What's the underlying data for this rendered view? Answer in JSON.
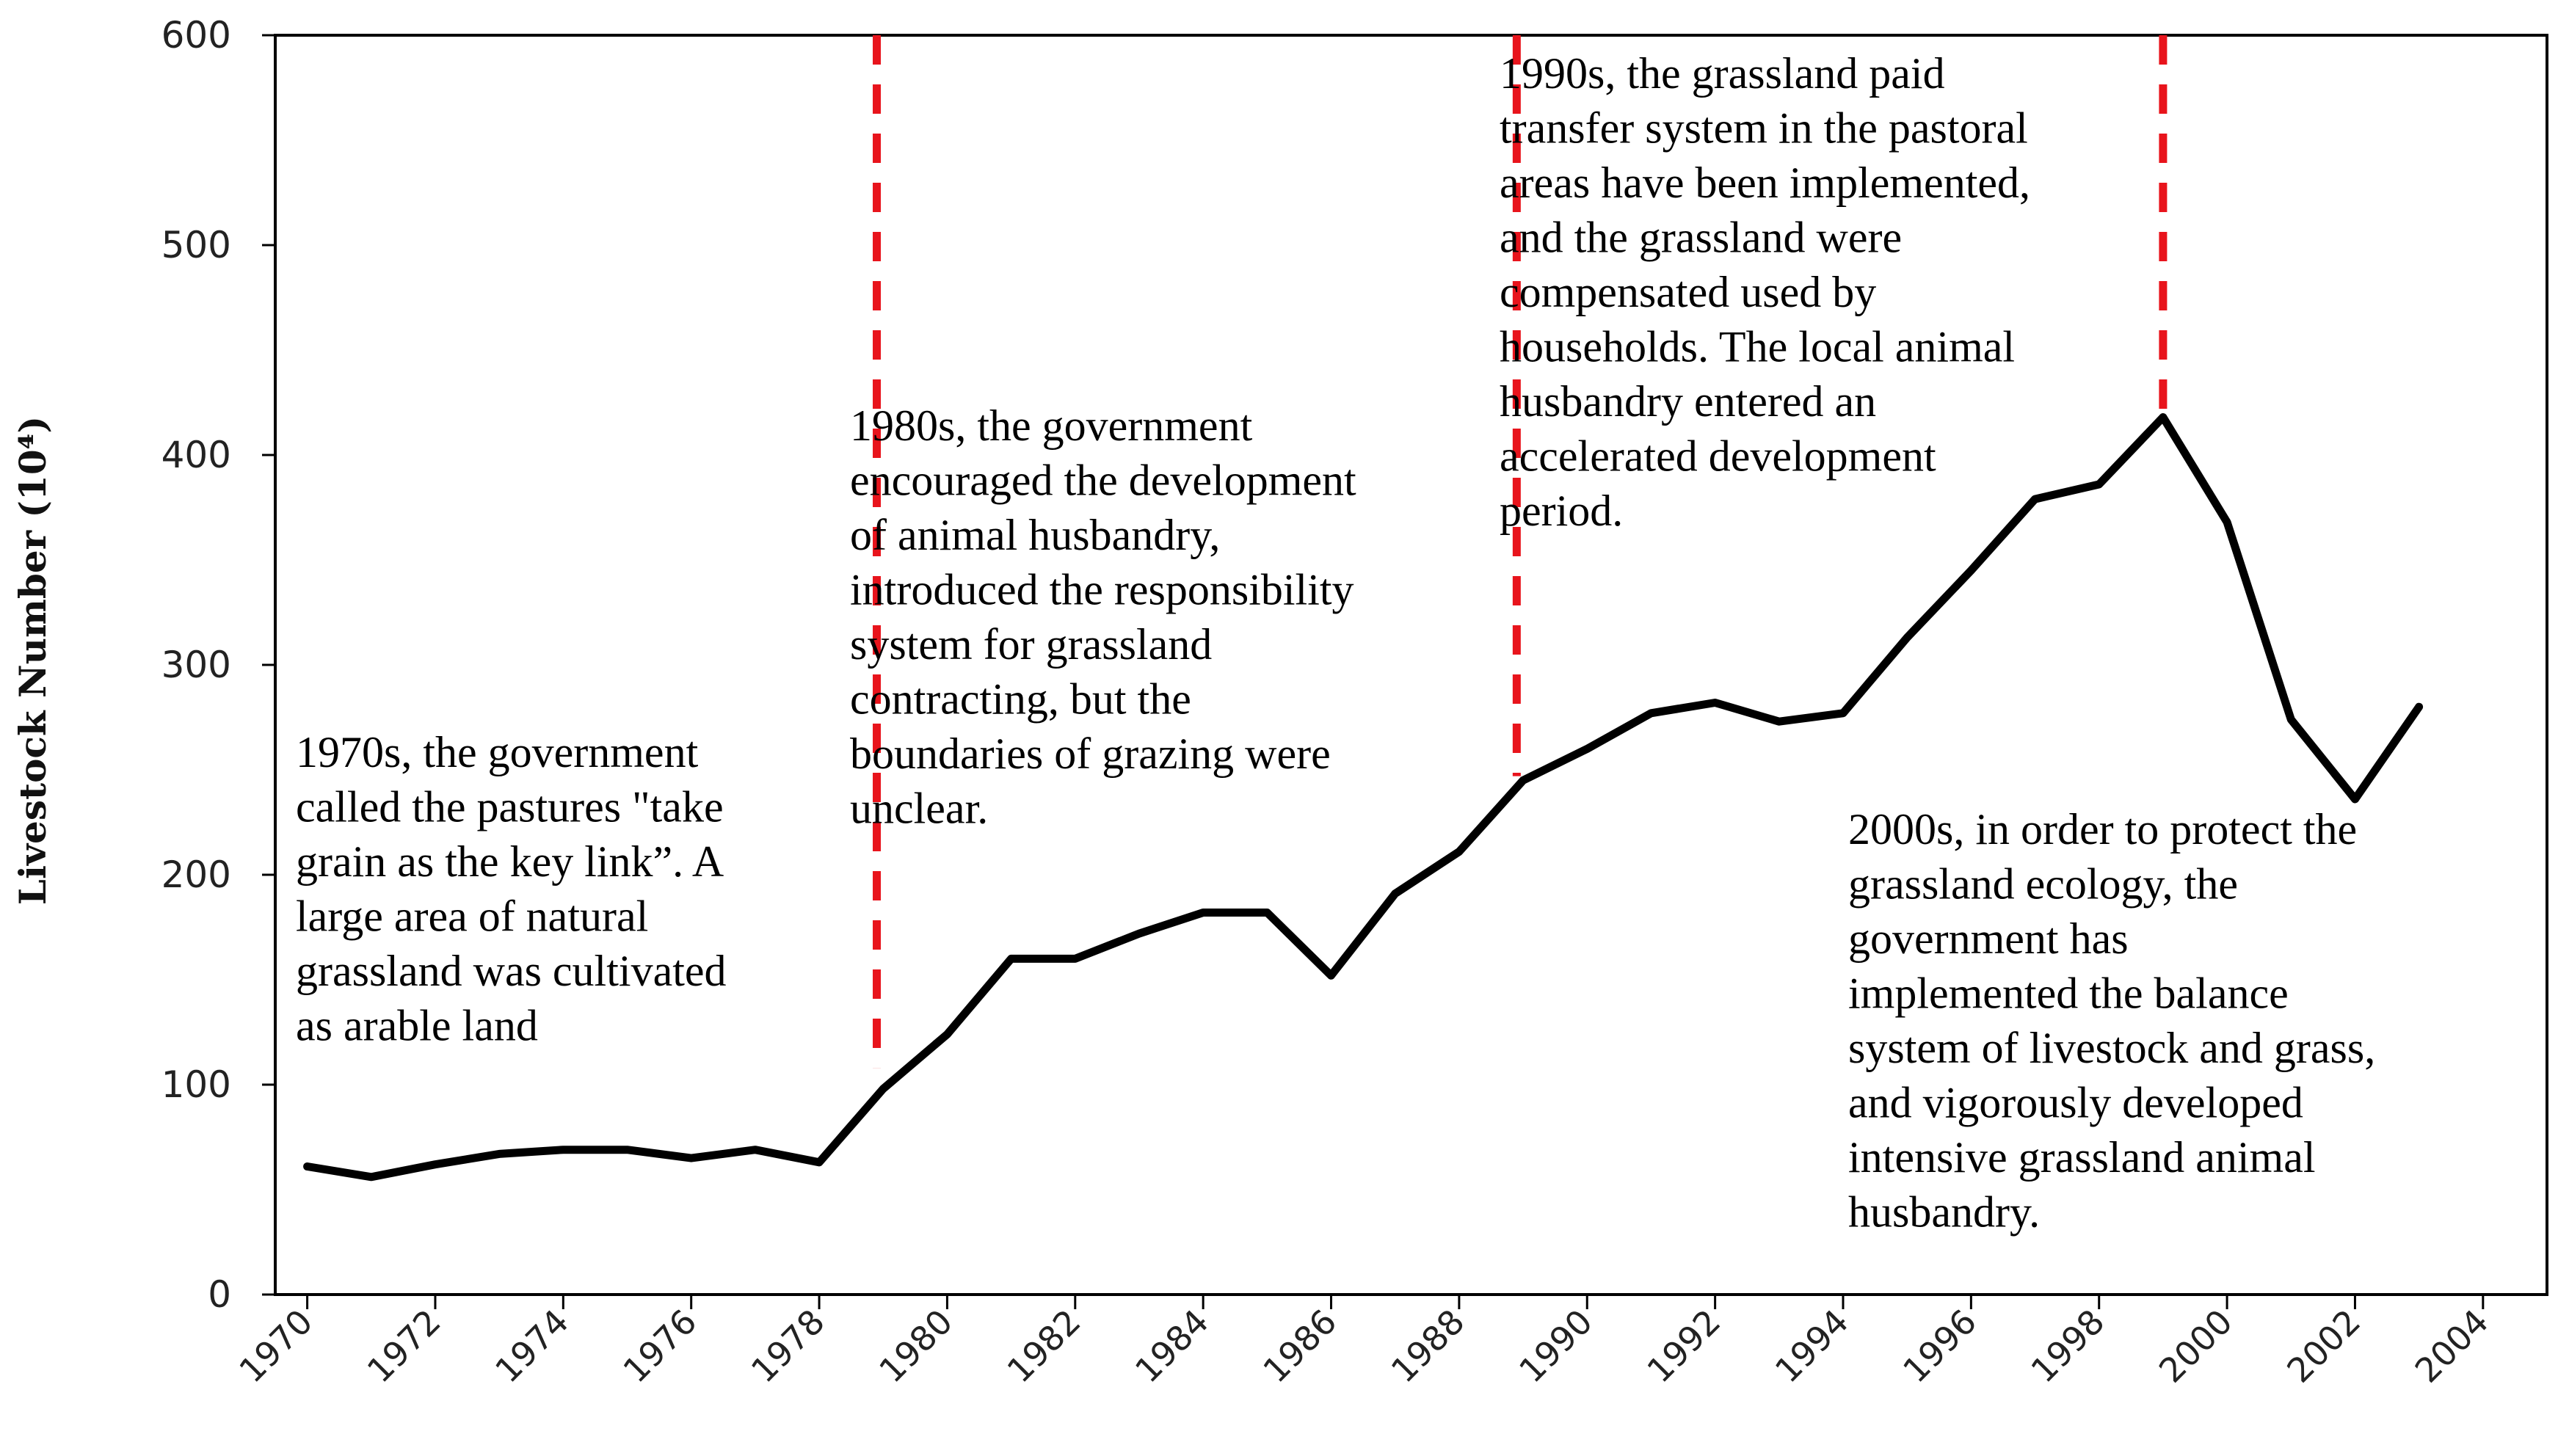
{
  "chart_data": {
    "type": "line",
    "title": "",
    "xlabel": "",
    "ylabel": "Livestock Number (10⁴)",
    "xlim": [
      1969.5,
      2005
    ],
    "ylim": [
      0,
      600
    ],
    "y_ticks": [
      0,
      100,
      200,
      300,
      400,
      500,
      600
    ],
    "x_ticks": [
      1970,
      1972,
      1974,
      1976,
      1978,
      1980,
      1982,
      1984,
      1986,
      1988,
      1990,
      1992,
      1994,
      1996,
      1998,
      2000,
      2002,
      2004
    ],
    "grid": false,
    "series": [
      {
        "name": "Livestock Number",
        "color": "#000000",
        "x": [
          1970,
          1971,
          1972,
          1973,
          1974,
          1975,
          1976,
          1977,
          1978,
          1979,
          1980,
          1981,
          1982,
          1983,
          1984,
          1985,
          1986,
          1987,
          1988,
          1989,
          1990,
          1991,
          1992,
          1993,
          1994,
          1995,
          1996,
          1997,
          1998,
          1999,
          2000,
          2001,
          2002,
          2003
        ],
        "values": [
          61,
          56,
          62,
          67,
          69,
          69,
          65,
          69,
          63,
          98,
          124,
          160,
          160,
          172,
          182,
          182,
          152,
          191,
          211,
          245,
          260,
          277,
          282,
          273,
          277,
          313,
          345,
          379,
          386,
          418,
          368,
          274,
          236,
          280
        ]
      }
    ],
    "dividers": {
      "color": "#e8141c",
      "items": [
        {
          "x": 1978.9,
          "y_from": 108,
          "y_to": 600
        },
        {
          "x": 1988.9,
          "y_from": 247,
          "y_to": 600
        },
        {
          "x": 1999.0,
          "y_from": 418,
          "y_to": 600
        }
      ]
    },
    "annotations": [
      {
        "id": "1970s",
        "lines": [
          "1970s, the government",
          "called the pastures \"take",
          "grain as the key link”. A",
          "large area of natural",
          "grassland was cultivated",
          "as arable land"
        ]
      },
      {
        "id": "1980s",
        "lines": [
          "1980s, the government",
          "encouraged the development",
          "of animal husbandry,",
          "introduced the responsibility",
          "system for grassland",
          "contracting, but the",
          "boundaries of grazing were",
          "unclear."
        ]
      },
      {
        "id": "1990s",
        "lines": [
          "1990s, the grassland paid",
          "transfer system in the pastoral",
          "areas have been implemented,",
          "and the grassland were",
          "compensated used by",
          "households. The local animal",
          "husbandry entered an",
          "accelerated development",
          "period."
        ]
      },
      {
        "id": "2000s",
        "lines": [
          "2000s, in order to protect the",
          "grassland ecology, the",
          "government has",
          "implemented the balance",
          "system of livestock and grass,",
          "and vigorously developed",
          "intensive grassland animal",
          "husbandry."
        ]
      }
    ]
  }
}
